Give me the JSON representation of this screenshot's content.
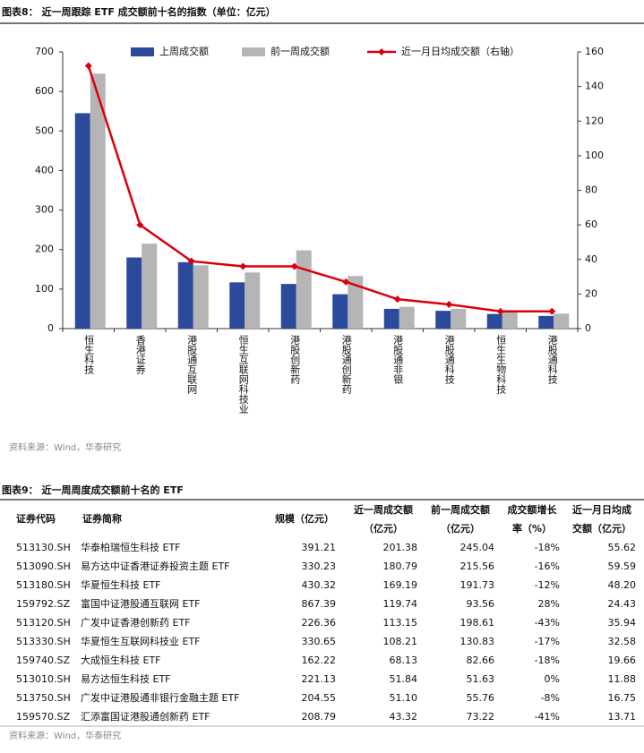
{
  "figure_title": "图表8： 近一周跟踪 ETF 成交额前十名的指数（单位：亿元）",
  "chart_data": {
    "type": "bar",
    "categories": [
      "恒生科技",
      "香港证券",
      "港股通互联网",
      "恒生互联网科技业",
      "港股创新药",
      "港股通创新药",
      "港股通非银",
      "港股通科技",
      "恒生生物科技",
      "港股通科技"
    ],
    "series": [
      {
        "name": "上周成交额",
        "color": "#2b4a9b",
        "values": [
          545,
          180,
          168,
          117,
          113,
          87,
          50,
          45,
          37,
          32
        ]
      },
      {
        "name": "前一周成交额",
        "color": "#b5b5b5",
        "values": [
          645,
          215,
          160,
          142,
          198,
          133,
          55,
          50,
          46,
          38
        ]
      },
      {
        "name": "近一月日均成交额（右轴）",
        "color": "#d9000d",
        "type": "line",
        "axis": "y2",
        "values": [
          152,
          60,
          39,
          36,
          36,
          27,
          17,
          14,
          10,
          10
        ]
      }
    ],
    "ylim": [
      0,
      700
    ],
    "yticks": [
      0,
      100,
      200,
      300,
      400,
      500,
      600,
      700
    ],
    "y2lim": [
      0,
      160
    ],
    "y2ticks": [
      0,
      20,
      40,
      60,
      80,
      100,
      120,
      140,
      160
    ],
    "grid": false
  },
  "figure_source": "资料来源：Wind，华泰研究",
  "table_title": "图表9： 近一周周度成交额前十名的 ETF",
  "table": {
    "header": [
      [
        "证券代码"
      ],
      [
        "证券简称"
      ],
      [
        "规模（亿元）"
      ],
      [
        "近一周成交额",
        "（亿元）"
      ],
      [
        "前一周成交额",
        "（亿元）"
      ],
      [
        "成交额增长",
        "率（%）"
      ],
      [
        "近一月日均成",
        "交额（亿元）"
      ]
    ],
    "rows": [
      [
        "513130.SH",
        "华泰柏瑞恒生科技 ETF",
        "391.21",
        "201.38",
        "245.04",
        "-18%",
        "55.62"
      ],
      [
        "513090.SH",
        "易方达中证香港证券投资主题 ETF",
        "330.23",
        "180.79",
        "215.56",
        "-16%",
        "59.59"
      ],
      [
        "513180.SH",
        "华夏恒生科技 ETF",
        "430.32",
        "169.19",
        "191.73",
        "-12%",
        "48.20"
      ],
      [
        "159792.SZ",
        "富国中证港股通互联网 ETF",
        "867.39",
        "119.74",
        "93.56",
        "28%",
        "24.43"
      ],
      [
        "513120.SH",
        "广发中证香港创新药 ETF",
        "226.36",
        "113.15",
        "198.61",
        "-43%",
        "35.94"
      ],
      [
        "513330.SH",
        "华夏恒生互联网科技业 ETF",
        "330.65",
        "108.21",
        "130.83",
        "-17%",
        "32.58"
      ],
      [
        "159740.SZ",
        "大成恒生科技 ETF",
        "162.22",
        "68.13",
        "82.66",
        "-18%",
        "19.66"
      ],
      [
        "513010.SH",
        "易方达恒生科技 ETF",
        "221.13",
        "51.84",
        "51.63",
        "0%",
        "11.88"
      ],
      [
        "513750.SH",
        "广发中证港股通非银行金融主题 ETF",
        "204.55",
        "51.10",
        "55.76",
        "-8%",
        "16.75"
      ],
      [
        "159570.SZ",
        "汇添富国证港股通创新药 ETF",
        "208.79",
        "43.32",
        "73.22",
        "-41%",
        "13.71"
      ]
    ]
  },
  "table_source": "资料来源：Wind，华泰研究"
}
